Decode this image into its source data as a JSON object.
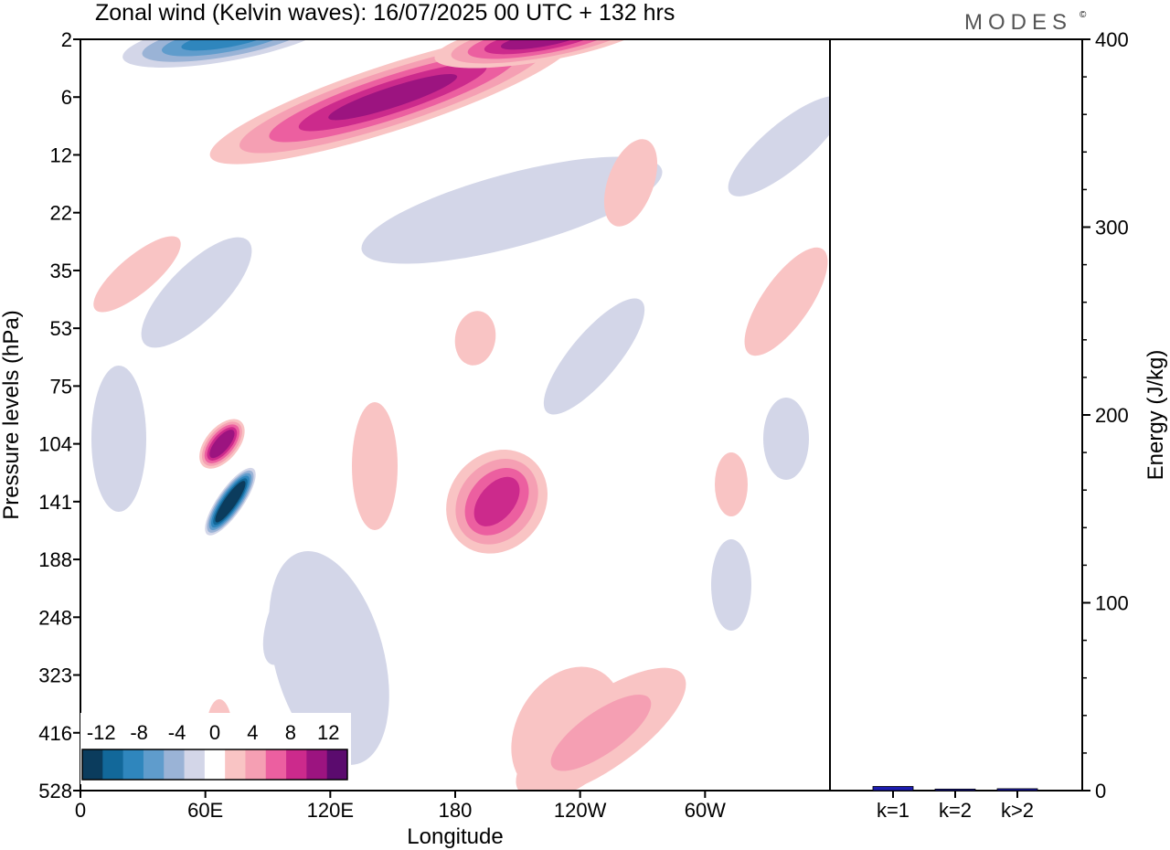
{
  "title": "Zonal wind (Kelvin waves):  16/07/2025  00 UTC  + 132 hrs",
  "logo": "MODES",
  "logo_mark": "©",
  "chart_data": [
    {
      "type": "heatmap",
      "xlabel": "Longitude",
      "ylabel": "Pressure levels (hPa)",
      "x_ticks": [
        "0",
        "60E",
        "120E",
        "180",
        "120W",
        "60W"
      ],
      "x_tick_values": [
        0,
        60,
        120,
        180,
        240,
        300
      ],
      "xlim": [
        0,
        360
      ],
      "y_ticks": [
        "2",
        "6",
        "12",
        "22",
        "35",
        "53",
        "75",
        "104",
        "141",
        "188",
        "248",
        "323",
        "416",
        "528"
      ],
      "colorbar": {
        "labels": [
          "-12",
          "-8",
          "-4",
          "0",
          "4",
          "8",
          "12"
        ],
        "label_values": [
          -12,
          -8,
          -4,
          0,
          4,
          8,
          12
        ],
        "levels": [
          -14,
          -12,
          -10,
          -8,
          -6,
          -4,
          -2,
          2,
          4,
          6,
          8,
          10,
          12,
          14
        ],
        "colors": [
          "#0b3c5d",
          "#12689a",
          "#2f86bd",
          "#5f9ccc",
          "#9ab3d6",
          "#d3d6e8",
          "#ffffff",
          "#f9c4c4",
          "#f59fb3",
          "#ec5fa0",
          "#cc2a8c",
          "#9c1480",
          "#5b0b6e"
        ]
      },
      "features": [
        {
          "sign": "negative",
          "peak": -14,
          "lon": 72,
          "level": "141"
        },
        {
          "sign": "positive",
          "peak": 10,
          "lon": 68,
          "level": "104"
        },
        {
          "sign": "positive",
          "peak": 8,
          "lon": 200,
          "level": "141"
        },
        {
          "sign": "positive",
          "peak": 10,
          "lon": 150,
          "level": "6"
        },
        {
          "sign": "positive",
          "peak": 10,
          "lon": 222,
          "level": "2"
        },
        {
          "sign": "negative",
          "peak": -10,
          "lon": 70,
          "level": "2"
        },
        {
          "sign": "negative",
          "peak": -4,
          "lon": 100,
          "level": "248"
        },
        {
          "sign": "positive",
          "peak": 4,
          "lon": 250,
          "level": "416"
        }
      ]
    },
    {
      "type": "bar",
      "categories": [
        "k=1",
        "k=2",
        "k>2"
      ],
      "values": [
        2.2,
        0.8,
        1.0
      ],
      "ylabel": "Energy (J/kg)",
      "ylim": [
        0,
        400
      ],
      "y_ticks": [
        "0",
        "100",
        "200",
        "300",
        "400"
      ],
      "y_tick_values": [
        0,
        100,
        200,
        300,
        400
      ],
      "bar_color": "#1c1cb0"
    }
  ]
}
